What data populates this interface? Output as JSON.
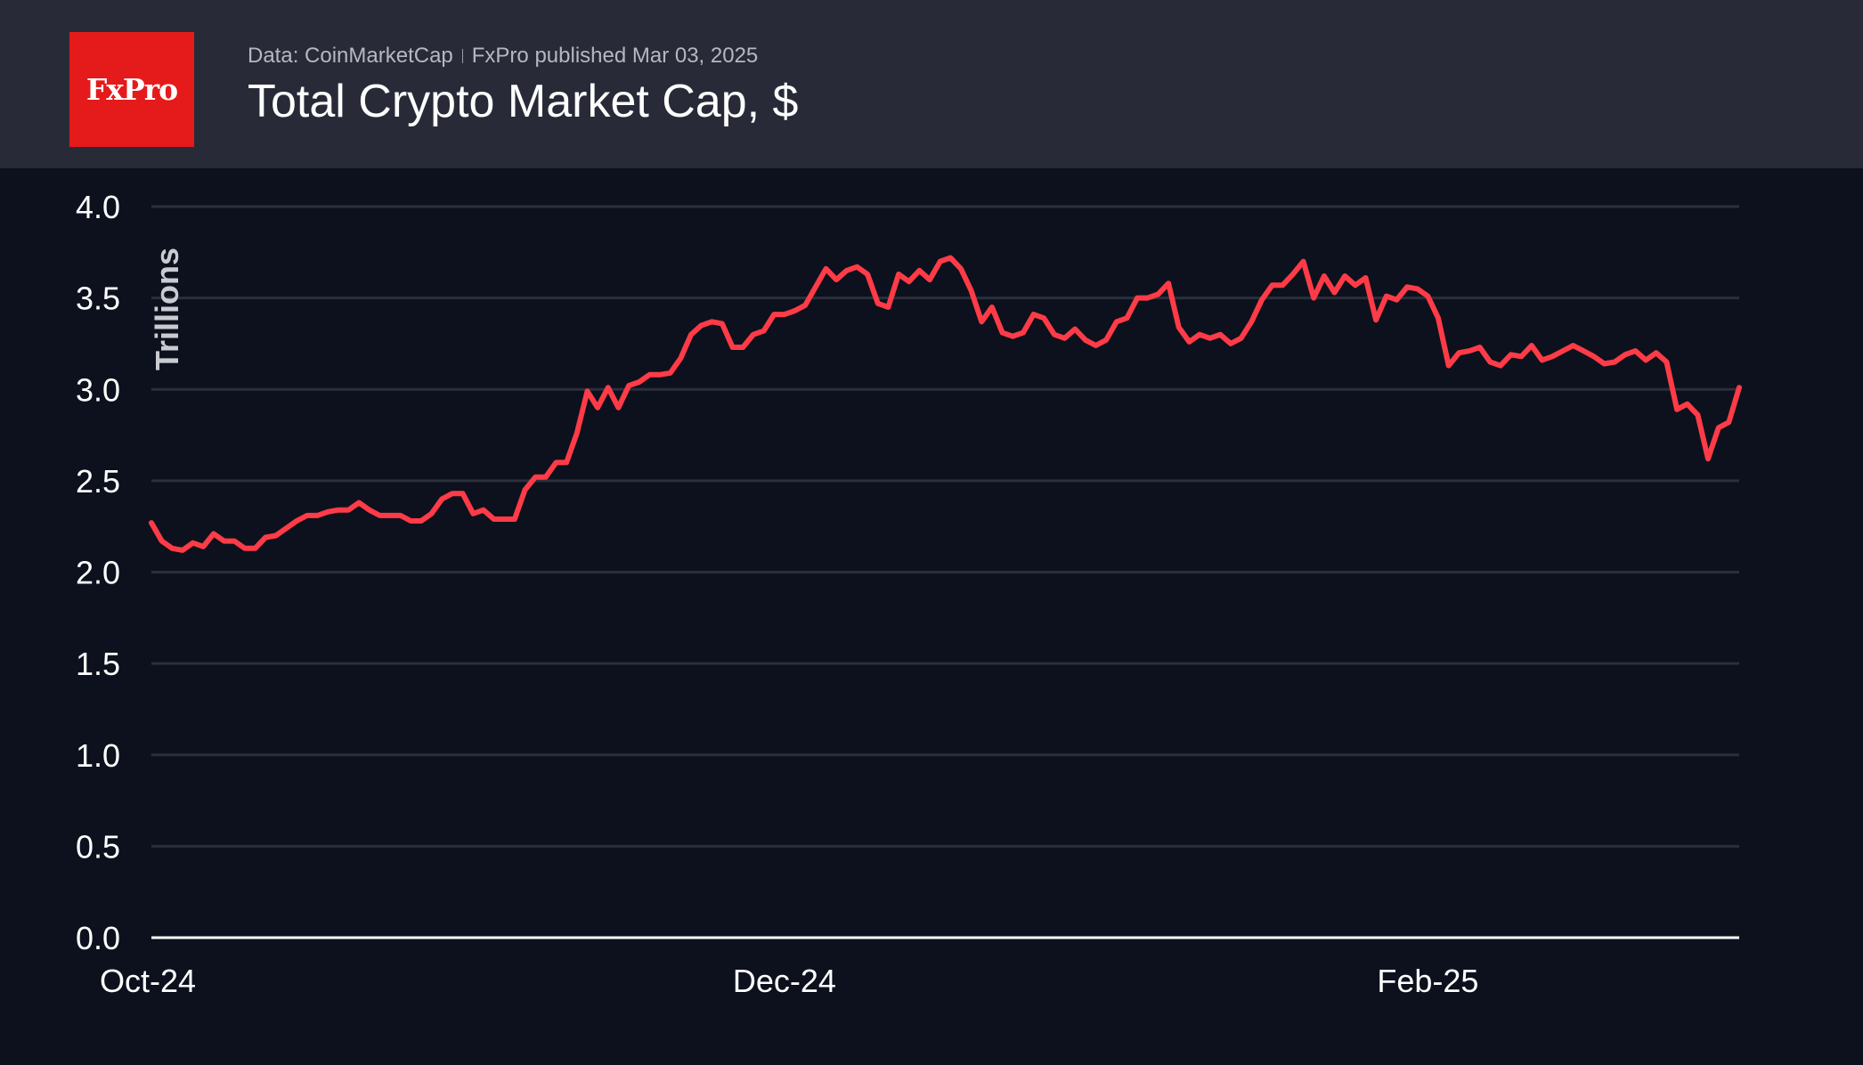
{
  "header": {
    "logo_text": "FxPro",
    "source": "Data: CoinMarketCap",
    "published": "FxPro published Mar 03, 2025",
    "title": "Total Crypto Market Cap, $"
  },
  "colors": {
    "line": "#ff3b47",
    "grid": "#2a2f3b",
    "axis": "#ffffff",
    "brand": "#e51a1a"
  },
  "chart_data": {
    "type": "line",
    "title": "Total Crypto Market Cap, $",
    "xlabel": "",
    "ylabel": "Trillions",
    "ylim": [
      0,
      4
    ],
    "yticks": [
      "0.0",
      "0.5",
      "1.0",
      "1.5",
      "2.0",
      "2.5",
      "3.0",
      "3.5",
      "4.0"
    ],
    "ytick_values": [
      0,
      0.5,
      1,
      1.5,
      2,
      2.5,
      3,
      3.5,
      4
    ],
    "xticks": [
      {
        "label": "Oct-24",
        "index": 0
      },
      {
        "label": "Dec-24",
        "index": 61
      },
      {
        "label": "Feb-25",
        "index": 123
      }
    ],
    "grid": true,
    "series": [
      {
        "name": "Total Crypto Market Cap",
        "values": [
          2.27,
          2.17,
          2.13,
          2.12,
          2.16,
          2.14,
          2.21,
          2.17,
          2.17,
          2.13,
          2.13,
          2.19,
          2.2,
          2.24,
          2.28,
          2.31,
          2.31,
          2.33,
          2.34,
          2.34,
          2.38,
          2.34,
          2.31,
          2.31,
          2.31,
          2.28,
          2.28,
          2.32,
          2.4,
          2.43,
          2.43,
          2.32,
          2.34,
          2.29,
          2.29,
          2.29,
          2.45,
          2.52,
          2.52,
          2.6,
          2.6,
          2.76,
          2.99,
          2.9,
          3.01,
          2.9,
          3.02,
          3.04,
          3.08,
          3.08,
          3.09,
          3.17,
          3.3,
          3.35,
          3.37,
          3.36,
          3.23,
          3.23,
          3.3,
          3.32,
          3.41,
          3.41,
          3.43,
          3.46,
          3.56,
          3.66,
          3.6,
          3.65,
          3.67,
          3.63,
          3.47,
          3.45,
          3.63,
          3.59,
          3.65,
          3.6,
          3.7,
          3.72,
          3.66,
          3.54,
          3.37,
          3.45,
          3.31,
          3.29,
          3.31,
          3.41,
          3.39,
          3.3,
          3.28,
          3.33,
          3.27,
          3.24,
          3.27,
          3.37,
          3.39,
          3.5,
          3.5,
          3.52,
          3.58,
          3.34,
          3.26,
          3.3,
          3.28,
          3.3,
          3.25,
          3.28,
          3.37,
          3.49,
          3.57,
          3.57,
          3.63,
          3.7,
          3.5,
          3.62,
          3.53,
          3.62,
          3.57,
          3.61,
          3.38,
          3.51,
          3.49,
          3.56,
          3.55,
          3.51,
          3.39,
          3.13,
          3.2,
          3.21,
          3.23,
          3.15,
          3.13,
          3.19,
          3.18,
          3.24,
          3.16,
          3.18,
          3.21,
          3.24,
          3.21,
          3.18,
          3.14,
          3.15,
          3.19,
          3.21,
          3.16,
          3.2,
          3.15,
          2.89,
          2.92,
          2.86,
          2.62,
          2.79,
          2.82,
          3.01
        ]
      }
    ]
  }
}
